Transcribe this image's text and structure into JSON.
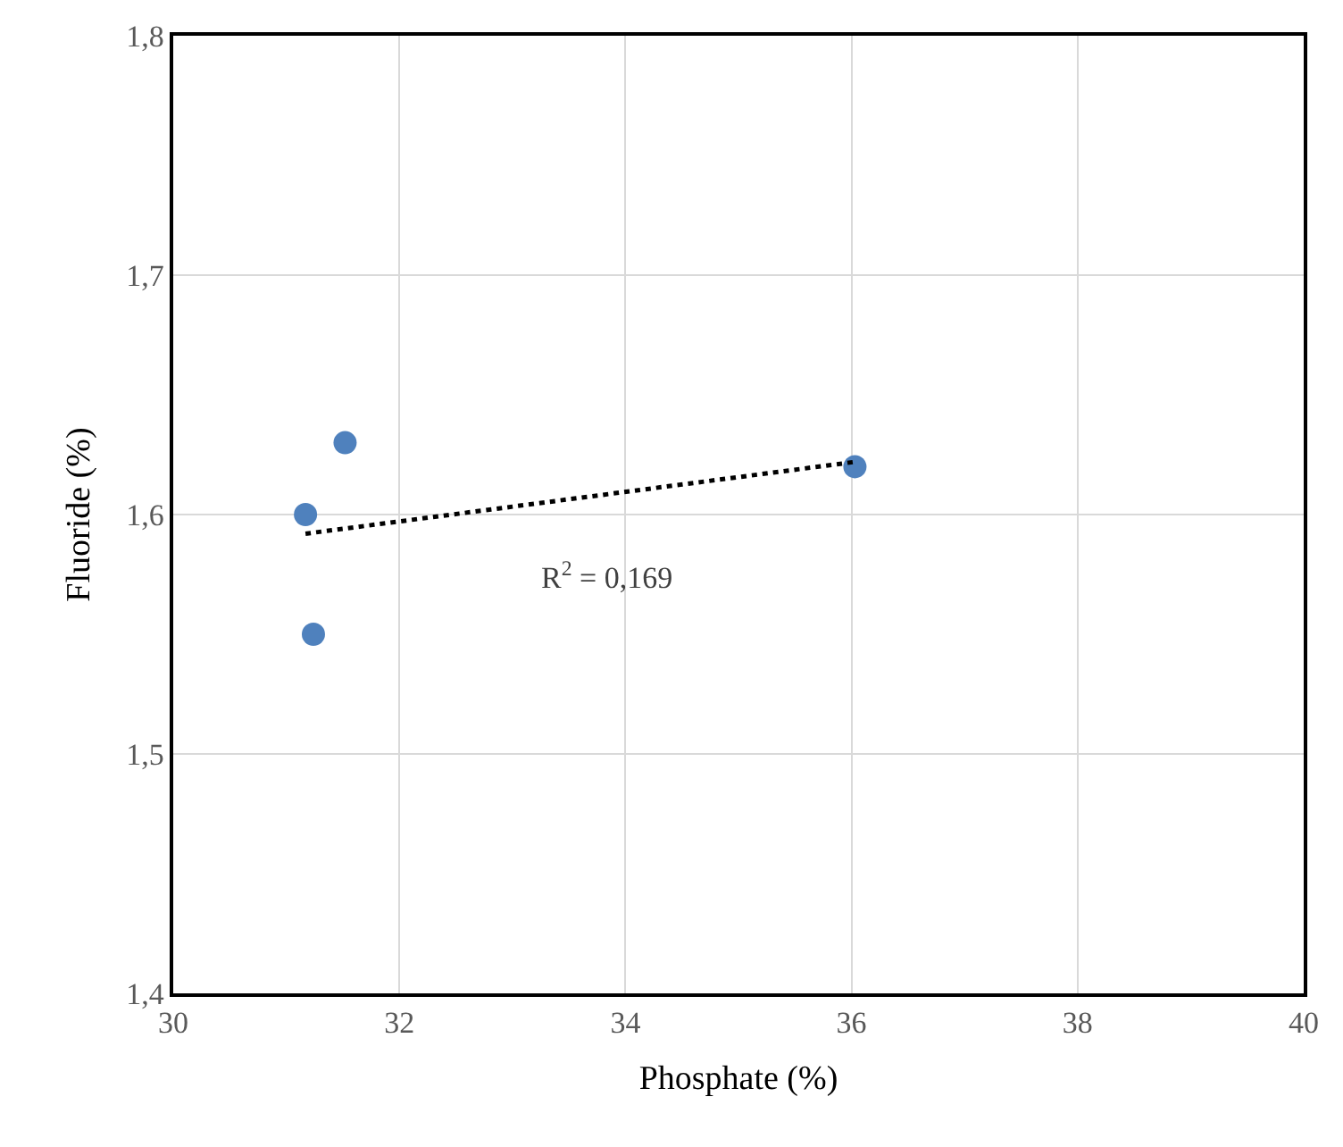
{
  "chart_data": {
    "type": "scatter",
    "xlabel": "Phosphate (%)",
    "ylabel": "Fluoride (%)",
    "series": [
      {
        "color": "#4f81bd",
        "x": [
          31.17,
          31.52,
          31.24,
          36.03
        ],
        "values": [
          1.6,
          1.63,
          1.55,
          1.62
        ],
        "marker": "circle"
      },
      {
        "type": "line",
        "color": "#000000",
        "x": [
          31.17,
          36.03
        ],
        "values": [
          1.592,
          1.622
        ],
        "line_style": "dotted",
        "marker": "none"
      }
    ],
    "xlim": [
      30,
      40
    ],
    "xticks": [
      30,
      32,
      34,
      36,
      38,
      40
    ],
    "ylim": [
      1.4,
      1.8
    ],
    "yticks": [
      {
        "value": 1.4,
        "label": "1,4"
      },
      {
        "value": 1.5,
        "label": "1,5"
      },
      {
        "value": 1.6,
        "label": "1,6"
      },
      {
        "value": 1.7,
        "label": "1,7"
      },
      {
        "value": 1.8,
        "label": "1,8"
      }
    ],
    "annotations": [
      "R$^{2}$ = 0,169"
    ],
    "grid": true
  }
}
